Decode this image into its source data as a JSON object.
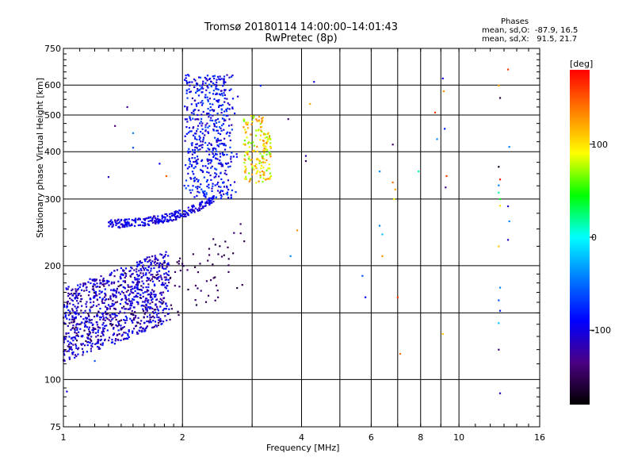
{
  "title_line1": "Tromsø 20180114 14:00:00–14:01:43",
  "title_line2": "RwPretec (8p)",
  "stats": {
    "heading": "Phases",
    "o_mode": "mean, sd,O:  -87.9, 16.5",
    "x_mode": "mean, sd,X:   91.5, 21.7"
  },
  "chart_data": {
    "type": "scatter",
    "xlabel": "Frequency [MHz]",
    "ylabel": "Stationary phase Virtual Height [km]",
    "x_scale": "log",
    "y_scale": "log",
    "xlim": [
      1,
      16
    ],
    "ylim": [
      75,
      750
    ],
    "x_major_ticks": [
      1,
      2,
      4,
      6,
      8,
      10,
      16
    ],
    "x_grid_only": [
      3,
      5,
      7,
      9
    ],
    "y_ticks": [
      75,
      100,
      200,
      300,
      400,
      500,
      600,
      750
    ],
    "y_grid_only": [
      150
    ],
    "grid": true,
    "colorbar": {
      "label": "[deg]",
      "range": [
        -180,
        180
      ],
      "ticks": [
        100,
        0,
        -100
      ],
      "colors": [
        "#000000",
        "#4b0082",
        "#0000ff",
        "#0078ff",
        "#00ffff",
        "#00ff00",
        "#ffff00",
        "#ff8000",
        "#ff0000"
      ]
    },
    "clusters": [
      {
        "x_range": [
          1.0,
          1.85
        ],
        "y_range": [
          120,
          240
        ],
        "phase_range": [
          -130,
          -80
        ],
        "count": 900
      },
      {
        "x_range": [
          1.3,
          2.4
        ],
        "y_range": [
          255,
          300
        ],
        "phase_range": [
          -120,
          -80
        ],
        "count": 260
      },
      {
        "x_range": [
          2.0,
          2.75
        ],
        "y_range": [
          300,
          640
        ],
        "phase_range": [
          -120,
          -60
        ],
        "count": 520
      },
      {
        "x_range": [
          2.8,
          3.4
        ],
        "y_range": [
          325,
          500
        ],
        "phase_range": [
          60,
          140
        ],
        "count": 180
      }
    ],
    "scattered_points": [
      {
        "x": 4.3,
        "y": 612,
        "phase": -100
      },
      {
        "x": 4.2,
        "y": 535,
        "phase": 120
      },
      {
        "x": 4.1,
        "y": 390,
        "phase": -120
      },
      {
        "x": 4.1,
        "y": 378,
        "phase": -150
      },
      {
        "x": 3.9,
        "y": 248,
        "phase": 130
      },
      {
        "x": 5.7,
        "y": 188,
        "phase": -60
      },
      {
        "x": 5.8,
        "y": 165,
        "phase": -90
      },
      {
        "x": 6.3,
        "y": 355,
        "phase": -40
      },
      {
        "x": 6.3,
        "y": 255,
        "phase": -40
      },
      {
        "x": 6.4,
        "y": 242,
        "phase": -20
      },
      {
        "x": 6.4,
        "y": 212,
        "phase": 130
      },
      {
        "x": 6.8,
        "y": 418,
        "phase": -140
      },
      {
        "x": 6.8,
        "y": 332,
        "phase": 140
      },
      {
        "x": 6.9,
        "y": 318,
        "phase": 120
      },
      {
        "x": 6.85,
        "y": 300,
        "phase": 90
      },
      {
        "x": 7.0,
        "y": 165,
        "phase": 160
      },
      {
        "x": 7.1,
        "y": 117,
        "phase": 140
      },
      {
        "x": 7.9,
        "y": 355,
        "phase": 20
      },
      {
        "x": 8.7,
        "y": 508,
        "phase": 160
      },
      {
        "x": 8.8,
        "y": 432,
        "phase": -40
      },
      {
        "x": 9.1,
        "y": 625,
        "phase": -100
      },
      {
        "x": 9.15,
        "y": 578,
        "phase": 130
      },
      {
        "x": 9.2,
        "y": 460,
        "phase": -80
      },
      {
        "x": 9.3,
        "y": 345,
        "phase": 160
      },
      {
        "x": 9.25,
        "y": 322,
        "phase": -130
      },
      {
        "x": 9.1,
        "y": 132,
        "phase": 110
      },
      {
        "x": 12.6,
        "y": 598,
        "phase": 120
      },
      {
        "x": 12.7,
        "y": 555,
        "phase": -160
      },
      {
        "x": 12.6,
        "y": 365,
        "phase": -170
      },
      {
        "x": 12.7,
        "y": 338,
        "phase": 170
      },
      {
        "x": 12.6,
        "y": 326,
        "phase": -40
      },
      {
        "x": 12.6,
        "y": 312,
        "phase": 20
      },
      {
        "x": 12.7,
        "y": 300,
        "phase": 40
      },
      {
        "x": 12.7,
        "y": 288,
        "phase": 100
      },
      {
        "x": 12.6,
        "y": 225,
        "phase": 110
      },
      {
        "x": 12.7,
        "y": 175,
        "phase": -40
      },
      {
        "x": 12.6,
        "y": 162,
        "phase": -60
      },
      {
        "x": 12.7,
        "y": 152,
        "phase": -80
      },
      {
        "x": 12.6,
        "y": 141,
        "phase": -20
      },
      {
        "x": 12.6,
        "y": 120,
        "phase": -140
      },
      {
        "x": 12.7,
        "y": 92,
        "phase": -110
      },
      {
        "x": 13.3,
        "y": 660,
        "phase": 160
      },
      {
        "x": 13.4,
        "y": 412,
        "phase": -40
      },
      {
        "x": 13.3,
        "y": 287,
        "phase": -110
      },
      {
        "x": 13.4,
        "y": 262,
        "phase": -40
      },
      {
        "x": 13.3,
        "y": 234,
        "phase": -110
      },
      {
        "x": 1.45,
        "y": 525,
        "phase": -130
      },
      {
        "x": 1.35,
        "y": 468,
        "phase": -140
      },
      {
        "x": 1.5,
        "y": 448,
        "phase": -40
      },
      {
        "x": 1.5,
        "y": 410,
        "phase": -60
      },
      {
        "x": 1.3,
        "y": 343,
        "phase": -110
      },
      {
        "x": 1.75,
        "y": 372,
        "phase": -90
      },
      {
        "x": 1.82,
        "y": 345,
        "phase": 150
      },
      {
        "x": 1.2,
        "y": 112,
        "phase": -60
      },
      {
        "x": 1.02,
        "y": 93,
        "phase": -100
      },
      {
        "x": 3.15,
        "y": 598,
        "phase": -80
      },
      {
        "x": 3.7,
        "y": 488,
        "phase": -140
      },
      {
        "x": 3.75,
        "y": 212,
        "phase": -40
      }
    ]
  }
}
